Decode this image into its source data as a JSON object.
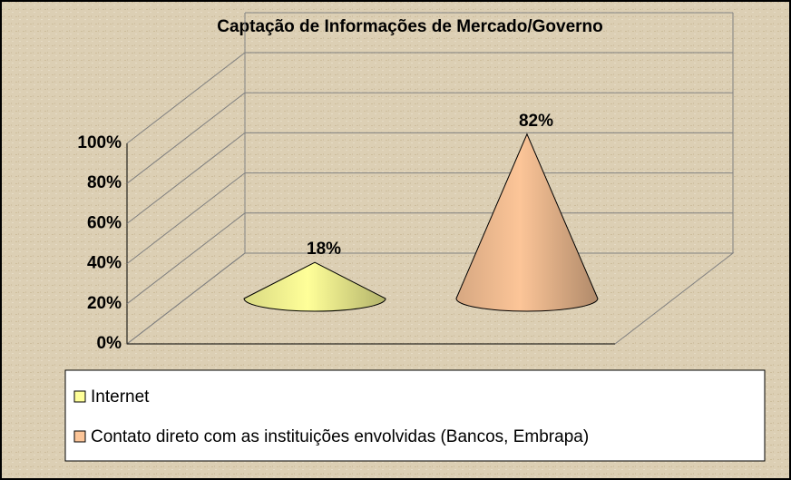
{
  "chart_data": {
    "type": "cone",
    "title": "Captação de Informações de Mercado/Governo",
    "series": [
      {
        "name": "Internet",
        "color": "#ffff99",
        "values": [
          18
        ],
        "value_labels": [
          "18%"
        ]
      },
      {
        "name": "Contato direto com as instituições envolvidas (Bancos, Embrapa)",
        "color": "#fcc598",
        "values": [
          82
        ],
        "value_labels": [
          "82%"
        ]
      }
    ],
    "ylim": [
      0,
      100
    ],
    "yticks": [
      {
        "value": 0,
        "label": "0%"
      },
      {
        "value": 20,
        "label": "20%"
      },
      {
        "value": 40,
        "label": "40%"
      },
      {
        "value": 60,
        "label": "60%"
      },
      {
        "value": 80,
        "label": "80%"
      },
      {
        "value": 100,
        "label": "100%"
      }
    ],
    "grid": true
  }
}
